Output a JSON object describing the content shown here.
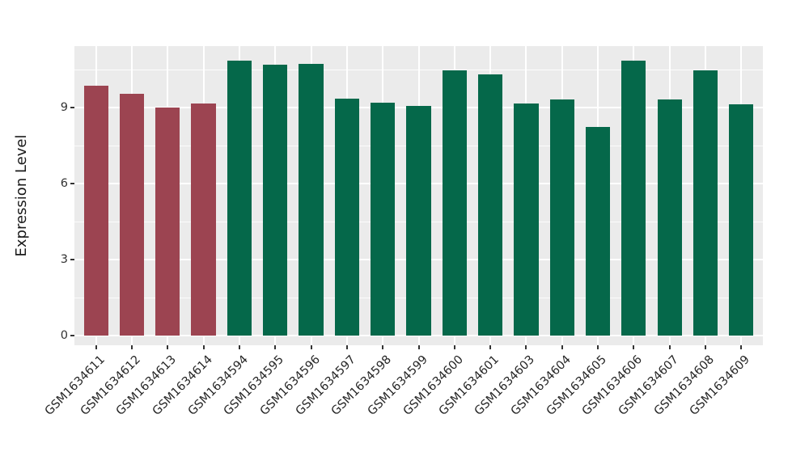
{
  "chart_data": {
    "type": "bar",
    "title": "",
    "xlabel": "",
    "ylabel": "Expression Level",
    "categories": [
      "GSM1634611",
      "GSM1634612",
      "GSM1634613",
      "GSM1634614",
      "GSM1634594",
      "GSM1634595",
      "GSM1634596",
      "GSM1634597",
      "GSM1634598",
      "GSM1634599",
      "GSM1634600",
      "GSM1634601",
      "GSM1634603",
      "GSM1634604",
      "GSM1634605",
      "GSM1634606",
      "GSM1634607",
      "GSM1634608",
      "GSM1634609"
    ],
    "values": [
      9.86,
      9.55,
      9.0,
      9.17,
      10.85,
      10.68,
      10.74,
      9.34,
      9.19,
      9.07,
      10.47,
      10.31,
      9.17,
      9.31,
      8.23,
      10.84,
      9.33,
      10.47,
      9.13
    ],
    "groups": [
      {
        "name": "group-red",
        "color": "#9C4451",
        "count": 4
      },
      {
        "name": "group-green",
        "color": "#05684A",
        "count": 15
      }
    ],
    "yticks": [
      0,
      3,
      6,
      9
    ],
    "yticks_minor": [
      1.5,
      4.5,
      7.5,
      10.5
    ],
    "ylim": [
      -0.38,
      11.43
    ],
    "grid": true,
    "legend_position": "none",
    "panel_bg": "#EBEBEB",
    "grid_color": "#FFFFFF",
    "axis_text_color": "#262626"
  }
}
